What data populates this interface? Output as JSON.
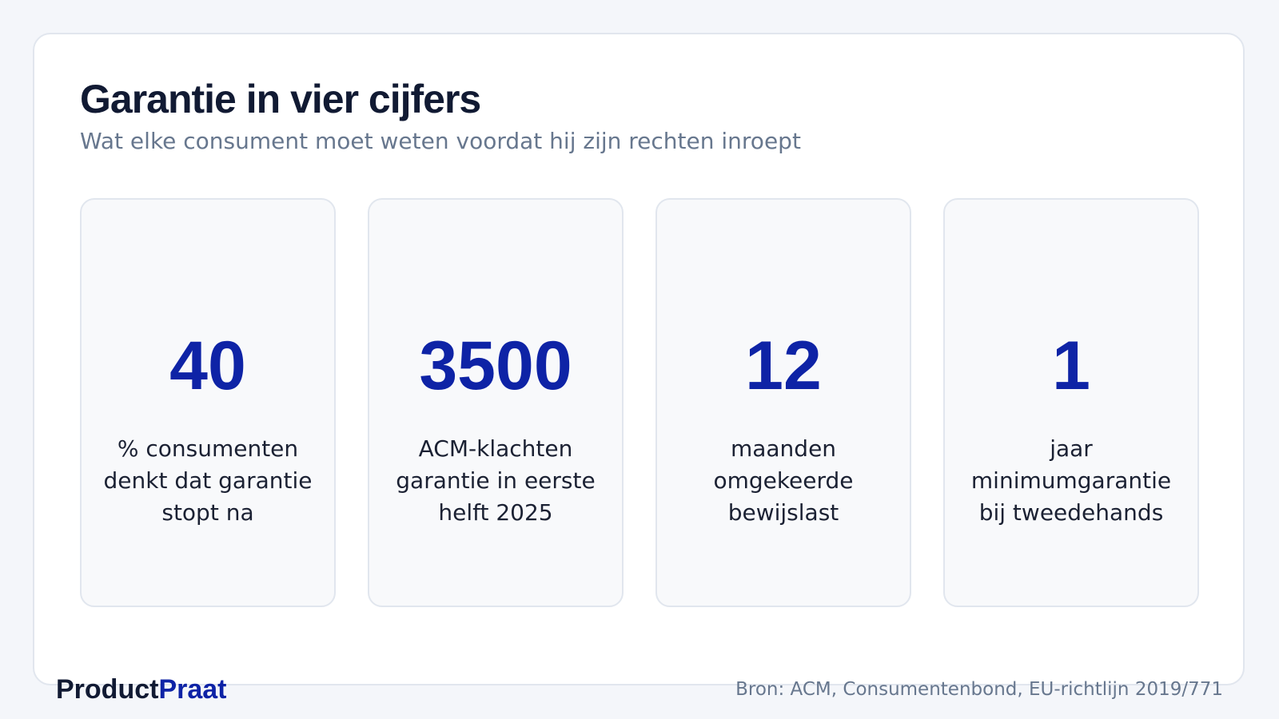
{
  "header": {
    "title": "Garantie in vier cijfers",
    "subtitle": "Wat elke consument moet weten voordat hij zijn rechten inroept"
  },
  "stats": [
    {
      "value": "40",
      "label": "% consumenten denkt dat garantie stopt na"
    },
    {
      "value": "3500",
      "label": "ACM-klachten garantie in eerste helft 2025"
    },
    {
      "value": "12",
      "label": "maanden omgekeerde bewijslast"
    },
    {
      "value": "1",
      "label": "jaar minimumgarantie bij tweedehands"
    }
  ],
  "footer": {
    "brand_part1": "Product",
    "brand_part2": "Praat",
    "source": "Bron: ACM, Consumentenbond, EU-richtlijn 2019/771"
  },
  "colors": {
    "page_background": "#f4f6fa",
    "card_background": "#ffffff",
    "stat_card_background": "#f8f9fb",
    "accent": "#0e23a6",
    "title": "#111a33",
    "muted": "#67778e"
  }
}
